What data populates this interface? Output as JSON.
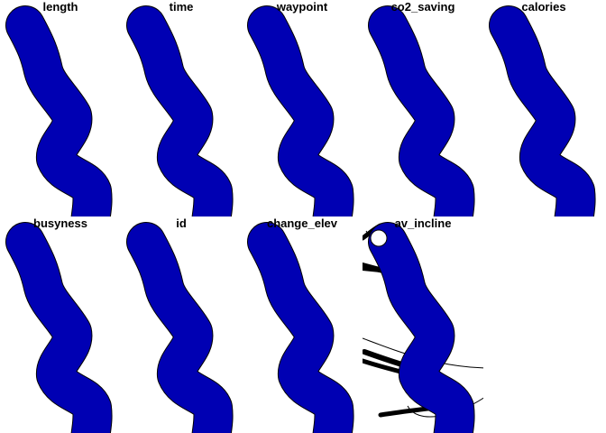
{
  "panels": [
    {
      "title": "length"
    },
    {
      "title": "time"
    },
    {
      "title": "waypoint"
    },
    {
      "title": "co2_saving"
    },
    {
      "title": "calories"
    },
    {
      "title": "busyness"
    },
    {
      "title": "id"
    },
    {
      "title": "change_elev"
    },
    {
      "title": "av_incline"
    }
  ],
  "colors": {
    "route": "#0000b3",
    "outline": "#000000",
    "background": "#ffffff"
  }
}
